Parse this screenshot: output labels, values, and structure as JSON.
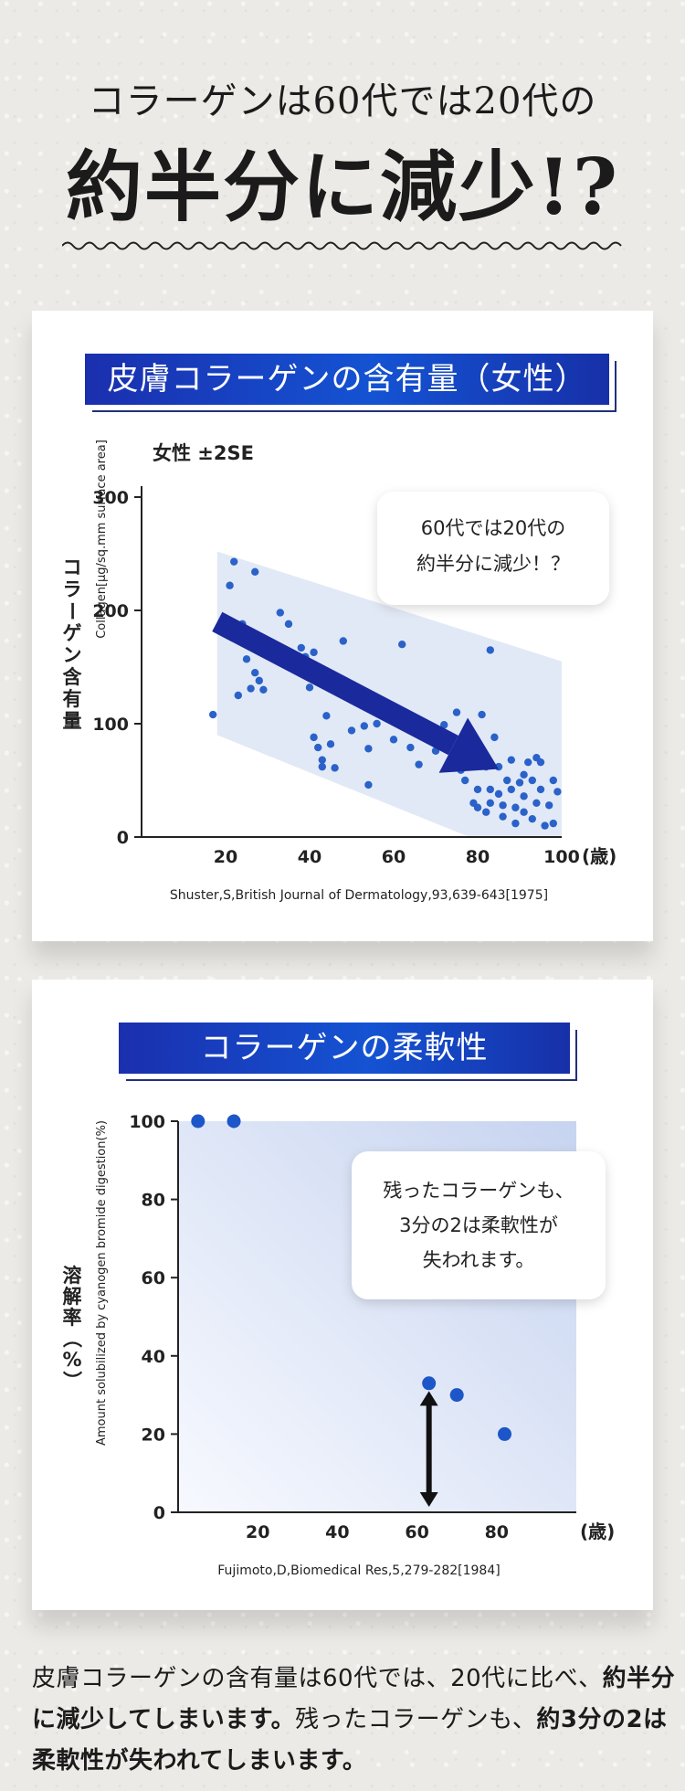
{
  "hero": {
    "line1": "コラーゲンは60代では20代の",
    "line2": "約半分に減少!?"
  },
  "colors": {
    "accent_blue": "#1347c9",
    "navy_arrow": "#1a2a9c",
    "dot_blue": "#1f5fd0",
    "background": "#eceae6"
  },
  "section1": {
    "banner": "皮膚コラーゲンの含有量（女性）",
    "callout_line1": "60代では20代の",
    "callout_line2": "約半分に減少！？",
    "source": "Shuster,S,British Journal of Dermatology,93,639-643[1975]"
  },
  "section2": {
    "banner": "コラーゲンの柔軟性",
    "callout_line1": "残ったコラーゲンも、",
    "callout_line2": "3分の2は柔軟性が",
    "callout_line3": "失われます。",
    "source": "Fujimoto,D,Biomedical Res,5,279-282[1984]"
  },
  "chart_data": [
    {
      "type": "scatter",
      "title": "",
      "subtitle": "女性 ±2SE",
      "ylabel": "コラーゲン含有量",
      "ylabel_sub": "Collagen[μg/sq.mm surface area]",
      "xlabel": "(歳)",
      "xlim": [
        0,
        100
      ],
      "ylim": [
        0,
        350
      ],
      "xticks": [
        20,
        40,
        60,
        80,
        100
      ],
      "yticks": [
        0,
        100,
        200,
        300
      ],
      "band_polygon": [
        [
          18,
          252
        ],
        [
          100,
          155
        ],
        [
          100,
          0
        ],
        [
          78,
          0
        ],
        [
          18,
          90
        ]
      ],
      "trend_arrow": {
        "from": [
          18,
          190
        ],
        "to": [
          85,
          60
        ]
      },
      "points": [
        [
          17,
          108
        ],
        [
          20,
          188
        ],
        [
          21,
          222
        ],
        [
          22,
          243
        ],
        [
          22,
          178
        ],
        [
          23,
          125
        ],
        [
          24,
          188
        ],
        [
          25,
          157
        ],
        [
          26,
          131
        ],
        [
          27,
          145
        ],
        [
          27,
          234
        ],
        [
          28,
          138
        ],
        [
          29,
          130
        ],
        [
          33,
          198
        ],
        [
          35,
          188
        ],
        [
          38,
          167
        ],
        [
          39,
          159
        ],
        [
          40,
          132
        ],
        [
          41,
          163
        ],
        [
          41,
          88
        ],
        [
          42,
          79
        ],
        [
          43,
          68
        ],
        [
          43,
          62
        ],
        [
          44,
          107
        ],
        [
          45,
          82
        ],
        [
          46,
          61
        ],
        [
          48,
          173
        ],
        [
          50,
          94
        ],
        [
          53,
          125
        ],
        [
          53,
          98
        ],
        [
          54,
          78
        ],
        [
          54,
          46
        ],
        [
          55,
          125
        ],
        [
          56,
          100
        ],
        [
          58,
          107
        ],
        [
          60,
          86
        ],
        [
          62,
          170
        ],
        [
          64,
          79
        ],
        [
          66,
          64
        ],
        [
          68,
          88
        ],
        [
          70,
          76
        ],
        [
          72,
          99
        ],
        [
          75,
          110
        ],
        [
          76,
          59
        ],
        [
          77,
          50
        ],
        [
          78,
          92
        ],
        [
          79,
          30
        ],
        [
          80,
          42
        ],
        [
          80,
          26
        ],
        [
          81,
          108
        ],
        [
          82,
          62
        ],
        [
          82,
          22
        ],
        [
          83,
          42
        ],
        [
          83,
          165
        ],
        [
          83,
          30
        ],
        [
          84,
          88
        ],
        [
          85,
          62
        ],
        [
          85,
          38
        ],
        [
          86,
          18
        ],
        [
          86,
          28
        ],
        [
          87,
          50
        ],
        [
          88,
          42
        ],
        [
          88,
          68
        ],
        [
          89,
          26
        ],
        [
          89,
          12
        ],
        [
          90,
          48
        ],
        [
          91,
          55
        ],
        [
          91,
          22
        ],
        [
          91,
          36
        ],
        [
          92,
          66
        ],
        [
          93,
          50
        ],
        [
          93,
          16
        ],
        [
          94,
          70
        ],
        [
          94,
          30
        ],
        [
          95,
          42
        ],
        [
          95,
          66
        ],
        [
          96,
          10
        ],
        [
          97,
          28
        ],
        [
          98,
          50
        ],
        [
          98,
          12
        ],
        [
          99,
          40
        ]
      ]
    },
    {
      "type": "scatter",
      "title": "",
      "ylabel": "溶解率（%）",
      "ylabel_sub": "Amount solubilized by cyanogen bromide digestion(%)",
      "xlabel": "(歳)",
      "xlim": [
        0,
        100
      ],
      "ylim": [
        0,
        100
      ],
      "xticks": [
        20,
        40,
        60,
        80
      ],
      "yticks": [
        0,
        20,
        40,
        60,
        80,
        100
      ],
      "double_arrow_x": 63,
      "double_arrow_y": [
        0,
        31
      ],
      "points": [
        [
          5,
          100
        ],
        [
          14,
          100
        ],
        [
          63,
          33
        ],
        [
          70,
          30
        ],
        [
          82,
          20
        ]
      ]
    }
  ]
}
